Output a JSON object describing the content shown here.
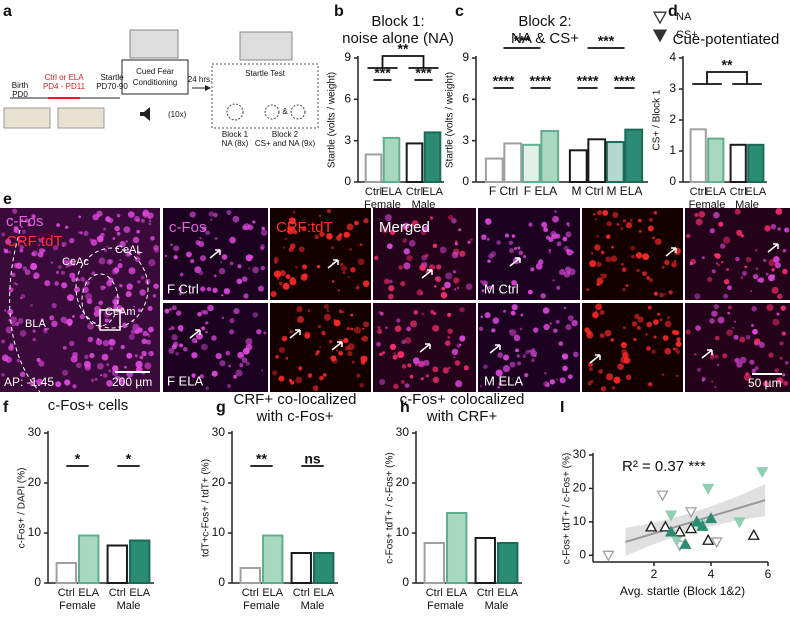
{
  "panel_labels": [
    "a",
    "b",
    "c",
    "d",
    "e",
    "f",
    "g",
    "h",
    "I"
  ],
  "schematic": {
    "birth": [
      "Birth",
      "PD0"
    ],
    "rearing": [
      "Ctrl or ELA",
      "PD4 - PD11"
    ],
    "startle": [
      "Startle",
      "PD70-90"
    ],
    "conditioning": [
      "Cued Fear",
      "Conditioning"
    ],
    "tone": "(10x)",
    "delay": "24 hrs.",
    "test": "Startle Test",
    "block1": [
      "Block 1",
      "NA (8x)"
    ],
    "block2": [
      "Block 2",
      "CS+ and NA (9x)"
    ],
    "and": "&"
  },
  "micrographs": {
    "overview": {
      "stains": [
        "c-Fos",
        "CRF:tdT"
      ],
      "regions": [
        "CeAL",
        "CeAc",
        "CeAm",
        "BLA"
      ],
      "coordinate": "AP: -1.45",
      "scale_bar": "200 µm"
    },
    "channels": [
      "c-Fos",
      "CRF:tdT",
      "Merged"
    ],
    "rows": [
      "F Ctrl",
      "F ELA",
      "M Ctrl",
      "M ELA"
    ],
    "scale_bar": "50 µm"
  },
  "chart_data": [
    {
      "type": "bar",
      "title": [
        "Block 1:",
        "noise alone (NA)"
      ],
      "ylabel": "Startle (volts / weight)",
      "categories": [
        "Ctrl",
        "ELA",
        "Ctrl",
        "ELA"
      ],
      "groups": [
        "Female",
        "Male"
      ],
      "values": [
        2.0,
        3.2,
        2.8,
        3.6
      ],
      "colors": [
        "#ffffff",
        "#a8d8c0",
        "#ffffff",
        "#2a8c72"
      ],
      "edges": [
        "#a0a0a0",
        "#5fae8e",
        "#1a1a1a",
        "#1b6b56"
      ],
      "ylim": [
        0,
        9
      ],
      "yticks": [
        0,
        3,
        6,
        9
      ],
      "brackets": [
        {
          "label": "***",
          "from": 0,
          "to": 1
        },
        {
          "label": "**",
          "from": 0,
          "to": 3
        },
        {
          "label": "***",
          "from": 2,
          "to": 3
        }
      ]
    },
    {
      "type": "grouped_bar",
      "title": [
        "Block 2:",
        "NA & CS+"
      ],
      "ylabel": "Startle (volts / weight)",
      "categories": [
        "F Ctrl",
        "F ELA",
        "M Ctrl",
        "M ELA"
      ],
      "series": [
        {
          "name": "NA",
          "marker": "triangle-down-open",
          "values": [
            1.7,
            2.7,
            2.3,
            2.9
          ]
        },
        {
          "name": "CS+",
          "marker": "triangle-down",
          "values": [
            2.8,
            3.7,
            3.1,
            3.8
          ]
        }
      ],
      "colors": [
        "#ffffff",
        "#a8d8c0",
        "#ffffff",
        "#2a8c72"
      ],
      "edges": [
        "#a0a0a0",
        "#5fae8e",
        "#1a1a1a",
        "#1b6b56"
      ],
      "ylim": [
        0,
        9
      ],
      "yticks": [
        0,
        3,
        6,
        9
      ],
      "brackets": [
        {
          "label": "****",
          "from": 0,
          "to": 0
        },
        {
          "label": "****",
          "from": 1,
          "to": 1
        },
        {
          "label": "***",
          "from": 0,
          "to": 1
        },
        {
          "label": "****",
          "from": 2,
          "to": 2
        },
        {
          "label": "****",
          "from": 3,
          "to": 3
        },
        {
          "label": "***",
          "from": 2,
          "to": 3
        }
      ]
    },
    {
      "type": "bar",
      "title": "Cue-potentiated",
      "ylabel": "CS+ / Block 1",
      "categories": [
        "Ctrl",
        "ELA",
        "Ctrl",
        "ELA"
      ],
      "groups": [
        "Female",
        "Male"
      ],
      "values": [
        1.7,
        1.4,
        1.2,
        1.2
      ],
      "colors": [
        "#ffffff",
        "#a8d8c0",
        "#ffffff",
        "#2a8c72"
      ],
      "edges": [
        "#a0a0a0",
        "#5fae8e",
        "#1a1a1a",
        "#1b6b56"
      ],
      "ylim": [
        0,
        4
      ],
      "yticks": [
        0,
        1,
        2,
        3,
        4
      ],
      "brackets": [
        {
          "label": "**",
          "from": 0,
          "to": 3
        }
      ]
    },
    {
      "type": "bar",
      "title": "c-Fos+ cells",
      "ylabel": "c-Fos+ / DAPI (%)",
      "categories": [
        "Ctrl",
        "ELA",
        "Ctrl",
        "ELA"
      ],
      "groups": [
        "Female",
        "Male"
      ],
      "values": [
        4,
        9.5,
        7.5,
        8.5
      ],
      "colors": [
        "#ffffff",
        "#a8d8c0",
        "#ffffff",
        "#2a8c72"
      ],
      "edges": [
        "#a0a0a0",
        "#5fae8e",
        "#1a1a1a",
        "#1b6b56"
      ],
      "ylim": [
        0,
        30
      ],
      "yticks": [
        0,
        10,
        20,
        30
      ],
      "brackets": [
        {
          "label": "*",
          "from": 0,
          "to": 1
        },
        {
          "label": "*",
          "from": 2,
          "to": 3
        }
      ]
    },
    {
      "type": "bar",
      "title": [
        "CRF+ co-localized",
        "with c-Fos+"
      ],
      "ylabel": "tdT+c-Fos+ / tdT+ (%)",
      "categories": [
        "Ctrl",
        "ELA",
        "Ctrl",
        "ELA"
      ],
      "groups": [
        "Female",
        "Male"
      ],
      "values": [
        3,
        9.5,
        6,
        6
      ],
      "colors": [
        "#ffffff",
        "#a8d8c0",
        "#ffffff",
        "#2a8c72"
      ],
      "edges": [
        "#a0a0a0",
        "#5fae8e",
        "#1a1a1a",
        "#1b6b56"
      ],
      "ylim": [
        0,
        30
      ],
      "yticks": [
        0,
        10,
        20,
        30
      ],
      "brackets": [
        {
          "label": "**",
          "from": 0,
          "to": 1
        },
        {
          "label": "ns",
          "from": 2,
          "to": 3
        }
      ]
    },
    {
      "type": "bar",
      "title": [
        "c-Fos+ colocalized",
        "with CRF+"
      ],
      "ylabel": "c-Fos+ tdT+ / c-Fos+ (%)",
      "categories": [
        "Ctrl",
        "ELA",
        "Ctrl",
        "ELA"
      ],
      "groups": [
        "Female",
        "Male"
      ],
      "values": [
        8,
        14,
        9,
        8
      ],
      "colors": [
        "#ffffff",
        "#a8d8c0",
        "#ffffff",
        "#2a8c72"
      ],
      "edges": [
        "#a0a0a0",
        "#5fae8e",
        "#1a1a1a",
        "#1b6b56"
      ],
      "ylim": [
        0,
        30
      ],
      "yticks": [
        0,
        10,
        20,
        30
      ]
    },
    {
      "type": "scatter",
      "ylabel": "c-Fos+ tdT+ / c-Fos+ (%)",
      "xlabel": "Avg. startle (Block 1&2)",
      "annotation": "R² = 0.37 ***",
      "xlim": [
        0,
        6
      ],
      "xticks": [
        2,
        4,
        6
      ],
      "ylim": [
        -2,
        30
      ],
      "yticks": [
        0,
        10,
        20,
        30
      ],
      "series": [
        {
          "color": "#a0a0a0",
          "marker": "triangle-down-open",
          "x": [
            0.4,
            2.3,
            3.3,
            2.9,
            4.2
          ],
          "y": [
            0,
            18,
            13,
            3,
            4
          ]
        },
        {
          "color": "#8fcfb0",
          "marker": "triangle-down",
          "x": [
            5.8,
            3.9,
            2.6,
            3.6,
            5.0,
            2.8
          ],
          "y": [
            25,
            20,
            12,
            9,
            10,
            4.5
          ]
        },
        {
          "color": "#1a1a1a",
          "marker": "triangle-open",
          "x": [
            1.9,
            2.4,
            2.9,
            3.9,
            5.5,
            3.3
          ],
          "y": [
            8.5,
            8.5,
            7,
            4.5,
            6,
            8
          ]
        },
        {
          "color": "#2a8c72",
          "marker": "triangle",
          "x": [
            3.5,
            3.1,
            3.7,
            4.0,
            2.6
          ],
          "y": [
            10,
            3.3,
            8.7,
            11,
            7
          ]
        }
      ],
      "fit": {
        "x": [
          1,
          5.9
        ],
        "y": [
          4,
          16.5
        ]
      }
    }
  ]
}
